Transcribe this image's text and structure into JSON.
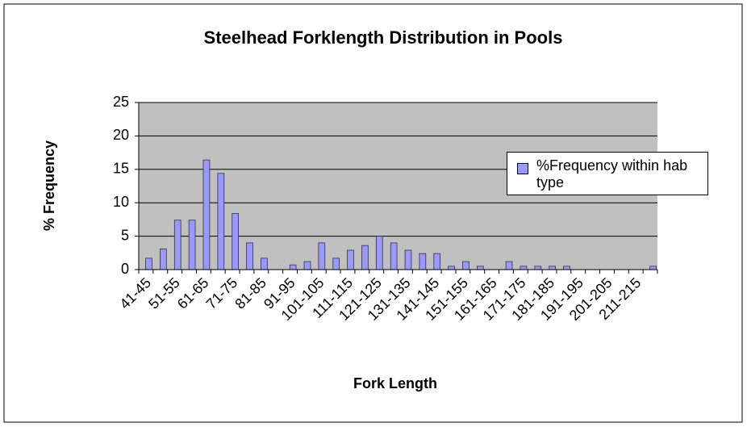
{
  "chart_data": {
    "type": "bar",
    "title": "Steelhead Forklength Distribution in Pools",
    "x_label": "Fork Length",
    "y_label": "% Frequency",
    "categories": [
      "41-45",
      null,
      "51-55",
      null,
      "61-65",
      null,
      "71-75",
      null,
      "81-85",
      null,
      "91-95",
      null,
      "101-105",
      null,
      "111-115",
      null,
      "121-125",
      null,
      "131-135",
      null,
      "141-145",
      null,
      "151-155",
      null,
      "161-165",
      null,
      "171-175",
      null,
      "181-185",
      null,
      "191-195",
      null,
      "201-205",
      null,
      "211-215",
      null
    ],
    "series": [
      {
        "name": "%Frequency within hab type",
        "color": "#9999ff",
        "values": [
          1.7,
          3.1,
          7.4,
          7.4,
          16.4,
          14.4,
          8.4,
          4,
          1.7,
          0,
          0.7,
          1.2,
          4,
          1.7,
          2.9,
          3.6,
          5,
          4,
          2.9,
          2.4,
          2.4,
          0.5,
          1.2,
          0.5,
          0,
          1.2,
          0.5,
          0.5,
          0.5,
          0.5,
          0,
          0,
          0,
          0,
          0,
          0.5
        ]
      }
    ],
    "ylim": [
      0,
      25
    ],
    "yticks": [
      0,
      5,
      10,
      15,
      20,
      25
    ],
    "grid": true,
    "legend_position": "right",
    "plot_background": "#c0c0c0"
  }
}
